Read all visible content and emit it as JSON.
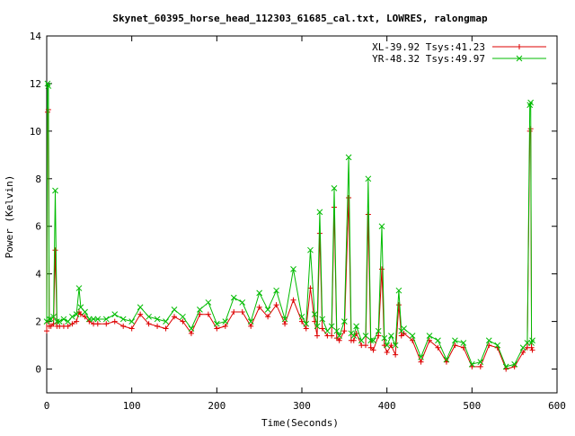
{
  "chart_data": {
    "type": "line",
    "title": "Skynet_60395_horse_head_112303_61685_cal.txt, LOWRES, ralongmap",
    "xlabel": "Time(Seconds)",
    "ylabel": "Power (Kelvin)",
    "xlim": [
      0,
      600
    ],
    "ylim": [
      -1,
      14
    ],
    "xticks": [
      0,
      100,
      200,
      300,
      400,
      500,
      600
    ],
    "yticks": [
      0,
      2,
      4,
      6,
      8,
      10,
      12,
      14
    ],
    "grid": false,
    "legend_position": "top-right",
    "series": [
      {
        "name": "XL-39.92 Tsys:41.23",
        "color": "#dd0000",
        "marker": "plus",
        "x": [
          0,
          1,
          2,
          3,
          5,
          8,
          10,
          12,
          15,
          20,
          25,
          30,
          35,
          38,
          40,
          45,
          50,
          55,
          60,
          70,
          80,
          90,
          100,
          110,
          120,
          130,
          140,
          150,
          160,
          170,
          180,
          190,
          200,
          210,
          220,
          230,
          240,
          250,
          260,
          270,
          280,
          290,
          300,
          305,
          310,
          315,
          318,
          321,
          324,
          330,
          335,
          338,
          341,
          344,
          350,
          355,
          358,
          361,
          364,
          370,
          375,
          378,
          381,
          384,
          390,
          394,
          397,
          400,
          405,
          410,
          414,
          417,
          420,
          430,
          440,
          450,
          460,
          470,
          480,
          490,
          500,
          510,
          520,
          530,
          540,
          550,
          560,
          565,
          568,
          569,
          570,
          571
        ],
        "y": [
          1.6,
          10.8,
          10.9,
          1.8,
          1.8,
          1.9,
          5.0,
          1.8,
          1.8,
          1.8,
          1.8,
          1.9,
          2.0,
          2.4,
          2.3,
          2.2,
          2.0,
          1.9,
          1.9,
          1.9,
          2.0,
          1.8,
          1.7,
          2.3,
          1.9,
          1.8,
          1.7,
          2.2,
          2.0,
          1.5,
          2.3,
          2.3,
          1.7,
          1.8,
          2.4,
          2.4,
          1.8,
          2.6,
          2.2,
          2.7,
          1.9,
          2.9,
          2.0,
          1.7,
          3.4,
          2.0,
          1.4,
          5.7,
          1.7,
          1.4,
          1.4,
          6.8,
          1.3,
          1.2,
          1.6,
          7.2,
          1.2,
          1.2,
          1.5,
          1.0,
          1.0,
          6.5,
          0.9,
          0.8,
          1.4,
          4.2,
          1.0,
          0.7,
          1.0,
          0.6,
          2.7,
          1.4,
          1.5,
          1.2,
          0.3,
          1.2,
          0.9,
          0.3,
          1.0,
          0.9,
          0.1,
          0.1,
          1.0,
          0.9,
          0.0,
          0.1,
          0.7,
          0.9,
          10.0,
          10.1,
          0.9,
          0.8
        ]
      },
      {
        "name": "YR-48.32 Tsys:49.97",
        "color": "#00bb00",
        "marker": "cross",
        "x": [
          0,
          1,
          2,
          3,
          5,
          8,
          10,
          12,
          15,
          20,
          25,
          30,
          35,
          38,
          40,
          45,
          50,
          55,
          60,
          70,
          80,
          90,
          100,
          110,
          120,
          130,
          140,
          150,
          160,
          170,
          180,
          190,
          200,
          210,
          220,
          230,
          240,
          250,
          260,
          270,
          280,
          290,
          300,
          305,
          310,
          315,
          318,
          321,
          324,
          330,
          335,
          338,
          341,
          344,
          350,
          355,
          358,
          361,
          364,
          370,
          375,
          378,
          381,
          384,
          390,
          394,
          397,
          400,
          405,
          410,
          414,
          417,
          420,
          430,
          440,
          450,
          460,
          470,
          480,
          490,
          500,
          510,
          520,
          530,
          540,
          550,
          560,
          565,
          568,
          569,
          570,
          571
        ],
        "y": [
          2.0,
          12.0,
          11.9,
          2.1,
          2.1,
          2.2,
          7.5,
          2.0,
          2.0,
          2.1,
          2.0,
          2.2,
          2.3,
          3.4,
          2.6,
          2.4,
          2.1,
          2.1,
          2.1,
          2.1,
          2.3,
          2.1,
          2.0,
          2.6,
          2.2,
          2.1,
          2.0,
          2.5,
          2.2,
          1.7,
          2.5,
          2.8,
          1.9,
          2.0,
          3.0,
          2.8,
          2.0,
          3.2,
          2.5,
          3.3,
          2.1,
          4.2,
          2.2,
          1.9,
          5.0,
          2.3,
          1.8,
          6.6,
          2.1,
          1.6,
          1.8,
          7.6,
          1.6,
          1.4,
          2.0,
          8.9,
          1.5,
          1.4,
          1.8,
          1.2,
          1.4,
          8.0,
          1.2,
          1.2,
          1.6,
          6.0,
          1.3,
          1.0,
          1.4,
          1.0,
          3.3,
          1.6,
          1.7,
          1.4,
          0.5,
          1.4,
          1.2,
          0.4,
          1.2,
          1.1,
          0.2,
          0.3,
          1.2,
          1.0,
          0.1,
          0.2,
          0.9,
          1.1,
          11.1,
          11.2,
          1.1,
          1.2
        ]
      }
    ]
  }
}
